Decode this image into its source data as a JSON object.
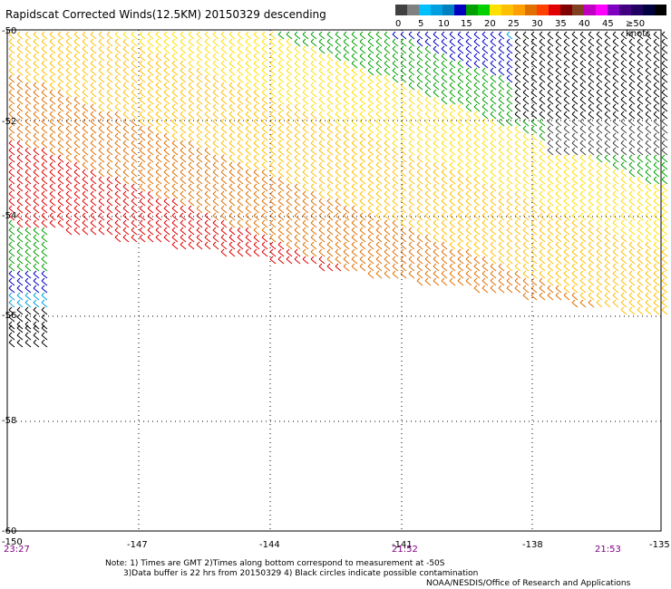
{
  "title": "Rapidscat Corrected Winds(12.5KM) 20150329 descending",
  "legend": {
    "labels": [
      "0",
      "5",
      "10",
      "15",
      "20",
      "25",
      "30",
      "35",
      "40",
      "45",
      "≥50 knots"
    ],
    "colors": [
      "#404040",
      "#808080",
      "#00c0ff",
      "#00a0e0",
      "#0080c0",
      "#0000c0",
      "#00a000",
      "#00d000",
      "#ffe000",
      "#ffc000",
      "#ffa000",
      "#e07000",
      "#ff4000",
      "#e00000",
      "#800000",
      "#804020",
      "#c000c0",
      "#ff00ff",
      "#8000c0",
      "#400080",
      "#200060",
      "#000040",
      "#000000"
    ]
  },
  "axes": {
    "y_labels": [
      "-50",
      "-52",
      "-54",
      "-56",
      "-58",
      "-60"
    ],
    "x_labels": [
      "-150",
      "-147",
      "-144",
      "-141",
      "-138",
      "-135"
    ]
  },
  "times": [
    "23:27",
    "21:52",
    "21:53"
  ],
  "notes": {
    "line1": "Note: 1) Times are GMT 2)Times along bottom correspond to measurement at -50S",
    "line2": "3)Data buffer is 22 hrs from 20150329 4) Black circles indicate possible contamination"
  },
  "credit": "NOAA/NESDIS/Office of Research and Applications"
}
